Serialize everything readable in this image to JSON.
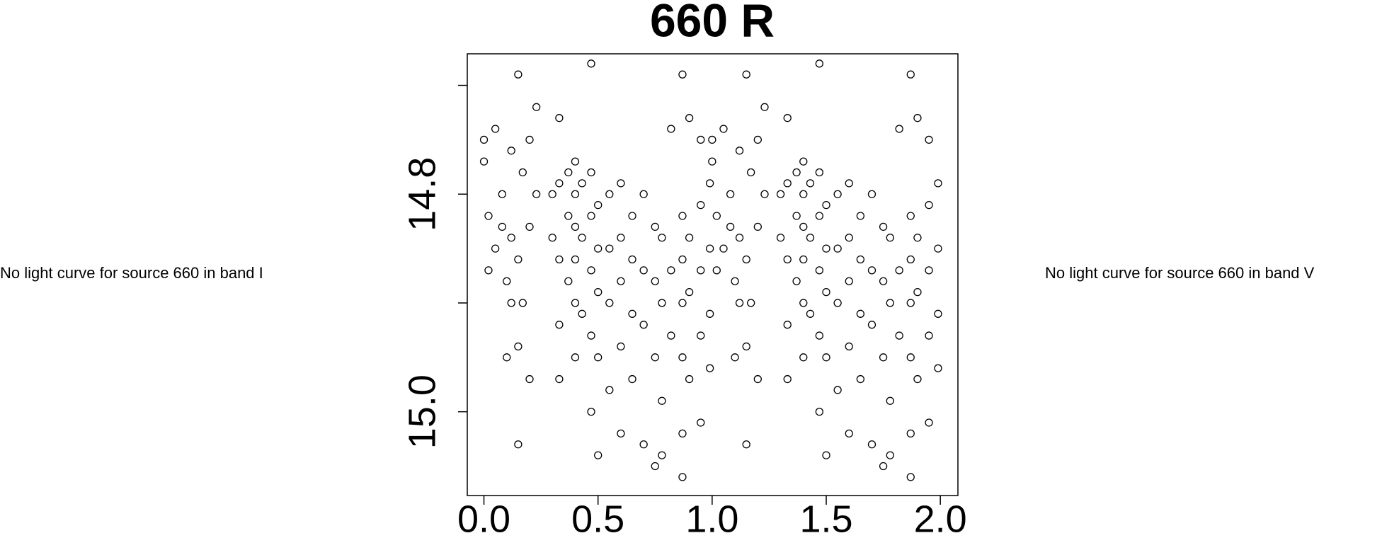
{
  "chart_data": {
    "type": "scatter",
    "title": "660 R",
    "x": [
      0,
      0,
      0.02,
      0.02,
      0.05,
      0.05,
      0.08,
      0.08,
      0.1,
      0.1,
      0.12,
      0.12,
      0.12,
      0.15,
      0.15,
      0.15,
      0.15,
      0.17,
      0.17,
      0.2,
      0.2,
      0.2,
      0.23,
      0.23,
      0.3,
      0.3,
      0.33,
      0.33,
      0.33,
      0.33,
      0.33,
      0.37,
      0.37,
      0.37,
      0.4,
      0.4,
      0.4,
      0.4,
      0.4,
      0.4,
      0.43,
      0.43,
      0.43,
      0.47,
      0.47,
      0.47,
      0.47,
      0.47,
      0.47,
      0.5,
      0.5,
      0.5,
      0.5,
      0.5,
      0.55,
      0.55,
      0.55,
      0.55,
      0.6,
      0.6,
      0.6,
      0.6,
      0.6,
      0.65,
      0.65,
      0.65,
      0.65,
      0.7,
      0.7,
      0.7,
      0.7,
      0.75,
      0.75,
      0.75,
      0.75,
      0.78,
      0.78,
      0.78,
      0.78,
      0.82,
      0.82,
      0.82,
      0.87,
      0.87,
      0.87,
      0.87,
      0.87,
      0.87,
      0.87,
      0.9,
      0.9,
      0.9,
      0.9,
      0.95,
      0.95,
      0.95,
      0.95,
      0.95,
      0.99,
      0.99,
      0.99,
      0.99,
      1,
      1,
      1.02,
      1.02,
      1.05,
      1.05,
      1.08,
      1.08,
      1.1,
      1.1,
      1.12,
      1.12,
      1.12,
      1.15,
      1.15,
      1.15,
      1.15,
      1.17,
      1.17,
      1.2,
      1.2,
      1.2,
      1.23,
      1.23,
      1.3,
      1.3,
      1.33,
      1.33,
      1.33,
      1.33,
      1.33,
      1.37,
      1.37,
      1.37,
      1.4,
      1.4,
      1.4,
      1.4,
      1.4,
      1.4,
      1.43,
      1.43,
      1.43,
      1.47,
      1.47,
      1.47,
      1.47,
      1.47,
      1.47,
      1.5,
      1.5,
      1.5,
      1.5,
      1.5,
      1.55,
      1.55,
      1.55,
      1.55,
      1.6,
      1.6,
      1.6,
      1.6,
      1.6,
      1.65,
      1.65,
      1.65,
      1.65,
      1.7,
      1.7,
      1.7,
      1.7,
      1.75,
      1.75,
      1.75,
      1.75,
      1.78,
      1.78,
      1.78,
      1.78,
      1.82,
      1.82,
      1.82,
      1.87,
      1.87,
      1.87,
      1.87,
      1.87,
      1.87,
      1.87,
      1.9,
      1.9,
      1.9,
      1.9,
      1.95,
      1.95,
      1.95,
      1.95,
      1.95,
      1.99,
      1.99,
      1.99,
      1.99
    ],
    "values": [
      14.75,
      14.77,
      14.82,
      14.87,
      14.74,
      14.85,
      14.8,
      14.83,
      14.88,
      14.95,
      14.76,
      14.84,
      14.9,
      14.69,
      14.86,
      14.94,
      15.03,
      14.78,
      14.9,
      14.75,
      14.83,
      14.97,
      14.72,
      14.8,
      14.8,
      14.84,
      14.73,
      14.79,
      14.86,
      14.92,
      14.97,
      14.78,
      14.82,
      14.88,
      14.77,
      14.8,
      14.83,
      14.86,
      14.9,
      14.95,
      14.79,
      14.84,
      14.91,
      14.68,
      14.78,
      14.82,
      14.87,
      14.93,
      15,
      14.81,
      14.85,
      14.89,
      14.95,
      15.04,
      14.8,
      14.85,
      14.9,
      14.98,
      14.79,
      14.84,
      14.88,
      14.94,
      15.02,
      14.82,
      14.86,
      14.91,
      14.97,
      14.8,
      14.87,
      14.92,
      15.03,
      14.83,
      14.88,
      14.95,
      15.05,
      14.84,
      14.9,
      14.99,
      15.04,
      14.74,
      14.87,
      14.93,
      14.69,
      14.82,
      14.86,
      14.9,
      14.95,
      15.02,
      15.06,
      14.73,
      14.84,
      14.89,
      14.97,
      14.75,
      14.81,
      14.87,
      14.93,
      15.01,
      14.79,
      14.85,
      14.91,
      14.96,
      14.75,
      14.77,
      14.82,
      14.87,
      14.74,
      14.85,
      14.8,
      14.83,
      14.88,
      14.95,
      14.76,
      14.84,
      14.9,
      14.69,
      14.86,
      14.94,
      15.03,
      14.78,
      14.9,
      14.75,
      14.83,
      14.97,
      14.72,
      14.8,
      14.8,
      14.84,
      14.73,
      14.79,
      14.86,
      14.92,
      14.97,
      14.78,
      14.82,
      14.88,
      14.77,
      14.8,
      14.83,
      14.86,
      14.9,
      14.95,
      14.79,
      14.84,
      14.91,
      14.68,
      14.78,
      14.82,
      14.87,
      14.93,
      15,
      14.81,
      14.85,
      14.89,
      14.95,
      15.04,
      14.8,
      14.85,
      14.9,
      14.98,
      14.79,
      14.84,
      14.88,
      14.94,
      15.02,
      14.82,
      14.86,
      14.91,
      14.97,
      14.8,
      14.87,
      14.92,
      15.03,
      14.83,
      14.88,
      14.95,
      15.05,
      14.84,
      14.9,
      14.99,
      15.04,
      14.74,
      14.87,
      14.93,
      14.69,
      14.82,
      14.86,
      14.9,
      14.95,
      15.02,
      15.06,
      14.73,
      14.84,
      14.89,
      14.97,
      14.75,
      14.81,
      14.87,
      14.93,
      15.01,
      14.79,
      14.85,
      14.91,
      14.96
    ],
    "color": "#000000",
    "xlim": [
      -0.073,
      2.077
    ],
    "xticks": [
      {
        "value": 0,
        "label": "0.0"
      },
      0.5,
      {
        "value": 1,
        "label": "1.0"
      },
      1.5,
      {
        "value": 2,
        "label": "2.0"
      }
    ],
    "ylim": [
      15.077,
      14.671
    ],
    "yticks": [
      {
        "value": 14.7,
        "label": null
      },
      14.8,
      {
        "value": 14.9,
        "label": null
      },
      {
        "value": 15,
        "label": "15.0"
      }
    ],
    "grid": false
  },
  "notes": {
    "left": "No light curve for source 660 in band I",
    "right": "No light curve for source 660 in band V"
  }
}
